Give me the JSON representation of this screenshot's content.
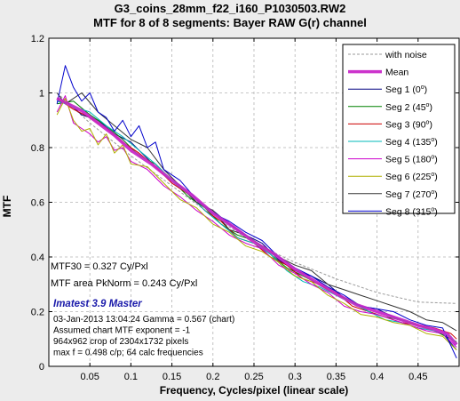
{
  "titles": {
    "line1": "G3_coins_28mm_f22_i160_P1030503.RW2",
    "line2": "MTF for 8 of 8 segments:  Bayer RAW G(r) channel"
  },
  "chart_data": {
    "type": "line",
    "xlabel": "Frequency, Cycles/pixel (linear scale)",
    "ylabel": "MTF",
    "xlim": [
      0,
      0.5
    ],
    "ylim": [
      0,
      1.2
    ],
    "xticks": [
      0.05,
      0.1,
      0.15,
      0.2,
      0.25,
      0.3,
      0.35,
      0.4,
      0.45
    ],
    "xtick_labels": [
      "0.05",
      "0.1",
      "0.15",
      "0.2",
      "0.25",
      "0.3",
      "0.35",
      "0.4",
      "0.45"
    ],
    "yticks": [
      0,
      0.2,
      0.4,
      0.6,
      0.8,
      1,
      1.2
    ],
    "ytick_labels": [
      "0",
      "0.2",
      "0.4",
      "0.6",
      "0.8",
      "1",
      "1.2"
    ],
    "grid": true,
    "legend_position": "top-right",
    "series": [
      {
        "name": "with noise",
        "style": "dashed",
        "color": "#9a9a9a",
        "width": 1,
        "points": [
          [
            0.01,
            1.0
          ],
          [
            0.05,
            0.89
          ],
          [
            0.1,
            0.77
          ],
          [
            0.15,
            0.66
          ],
          [
            0.2,
            0.55
          ],
          [
            0.25,
            0.45
          ],
          [
            0.3,
            0.38
          ],
          [
            0.35,
            0.32
          ],
          [
            0.4,
            0.27
          ],
          [
            0.45,
            0.235
          ],
          [
            0.497,
            0.23
          ]
        ]
      },
      {
        "name": "Mean",
        "style": "solid",
        "color": "#cc33cc",
        "width": 3.5,
        "points": [
          [
            0.01,
            0.98
          ],
          [
            0.02,
            0.965
          ],
          [
            0.04,
            0.935
          ],
          [
            0.06,
            0.89
          ],
          [
            0.08,
            0.845
          ],
          [
            0.1,
            0.79
          ],
          [
            0.125,
            0.74
          ],
          [
            0.15,
            0.68
          ],
          [
            0.175,
            0.625
          ],
          [
            0.2,
            0.56
          ],
          [
            0.225,
            0.51
          ],
          [
            0.25,
            0.455
          ],
          [
            0.275,
            0.41
          ],
          [
            0.3,
            0.355
          ],
          [
            0.325,
            0.31
          ],
          [
            0.35,
            0.265
          ],
          [
            0.375,
            0.225
          ],
          [
            0.4,
            0.2
          ],
          [
            0.425,
            0.175
          ],
          [
            0.45,
            0.15
          ],
          [
            0.47,
            0.135
          ],
          [
            0.485,
            0.12
          ],
          [
            0.497,
            0.08
          ]
        ]
      },
      {
        "name": "Seg 1",
        "sup": "0",
        "style": "solid",
        "color": "#000080",
        "width": 1,
        "points": [
          [
            0.01,
            0.97
          ],
          [
            0.025,
            0.96
          ],
          [
            0.04,
            0.92
          ],
          [
            0.06,
            0.9
          ],
          [
            0.08,
            0.85
          ],
          [
            0.1,
            0.82
          ],
          [
            0.12,
            0.76
          ],
          [
            0.14,
            0.7
          ],
          [
            0.16,
            0.66
          ],
          [
            0.18,
            0.6
          ],
          [
            0.2,
            0.57
          ],
          [
            0.22,
            0.52
          ],
          [
            0.24,
            0.48
          ],
          [
            0.26,
            0.45
          ],
          [
            0.28,
            0.39
          ],
          [
            0.3,
            0.35
          ],
          [
            0.32,
            0.33
          ],
          [
            0.34,
            0.3
          ],
          [
            0.36,
            0.25
          ],
          [
            0.38,
            0.22
          ],
          [
            0.4,
            0.21
          ],
          [
            0.42,
            0.18
          ],
          [
            0.44,
            0.16
          ],
          [
            0.46,
            0.14
          ],
          [
            0.48,
            0.12
          ],
          [
            0.497,
            0.06
          ]
        ]
      },
      {
        "name": "Seg 2",
        "sup": "45",
        "style": "solid",
        "color": "#008000",
        "width": 1,
        "points": [
          [
            0.01,
            0.96
          ],
          [
            0.03,
            0.97
          ],
          [
            0.05,
            0.92
          ],
          [
            0.07,
            0.88
          ],
          [
            0.09,
            0.83
          ],
          [
            0.11,
            0.77
          ],
          [
            0.13,
            0.74
          ],
          [
            0.15,
            0.68
          ],
          [
            0.17,
            0.62
          ],
          [
            0.19,
            0.58
          ],
          [
            0.21,
            0.52
          ],
          [
            0.23,
            0.48
          ],
          [
            0.25,
            0.46
          ],
          [
            0.27,
            0.41
          ],
          [
            0.29,
            0.36
          ],
          [
            0.31,
            0.33
          ],
          [
            0.33,
            0.3
          ],
          [
            0.35,
            0.26
          ],
          [
            0.37,
            0.24
          ],
          [
            0.39,
            0.2
          ],
          [
            0.41,
            0.18
          ],
          [
            0.43,
            0.17
          ],
          [
            0.45,
            0.15
          ],
          [
            0.47,
            0.13
          ],
          [
            0.49,
            0.1
          ],
          [
            0.497,
            0.09
          ]
        ]
      },
      {
        "name": "Seg 3",
        "sup": "90",
        "style": "solid",
        "color": "#cc0000",
        "width": 1,
        "points": [
          [
            0.01,
            0.98
          ],
          [
            0.03,
            0.94
          ],
          [
            0.05,
            0.91
          ],
          [
            0.07,
            0.87
          ],
          [
            0.09,
            0.82
          ],
          [
            0.11,
            0.78
          ],
          [
            0.13,
            0.73
          ],
          [
            0.15,
            0.67
          ],
          [
            0.17,
            0.63
          ],
          [
            0.19,
            0.57
          ],
          [
            0.21,
            0.53
          ],
          [
            0.23,
            0.47
          ],
          [
            0.25,
            0.45
          ],
          [
            0.27,
            0.4
          ],
          [
            0.29,
            0.37
          ],
          [
            0.31,
            0.32
          ],
          [
            0.33,
            0.3
          ],
          [
            0.35,
            0.27
          ],
          [
            0.37,
            0.22
          ],
          [
            0.39,
            0.2
          ],
          [
            0.41,
            0.18
          ],
          [
            0.43,
            0.16
          ],
          [
            0.45,
            0.15
          ],
          [
            0.47,
            0.14
          ],
          [
            0.49,
            0.12
          ],
          [
            0.497,
            0.1
          ]
        ]
      },
      {
        "name": "Seg 4",
        "sup": "135",
        "style": "solid",
        "color": "#00b8b8",
        "width": 1,
        "points": [
          [
            0.01,
            0.97
          ],
          [
            0.03,
            0.95
          ],
          [
            0.05,
            0.93
          ],
          [
            0.07,
            0.88
          ],
          [
            0.09,
            0.84
          ],
          [
            0.11,
            0.79
          ],
          [
            0.13,
            0.74
          ],
          [
            0.15,
            0.68
          ],
          [
            0.17,
            0.63
          ],
          [
            0.19,
            0.57
          ],
          [
            0.21,
            0.52
          ],
          [
            0.23,
            0.47
          ],
          [
            0.25,
            0.45
          ],
          [
            0.27,
            0.41
          ],
          [
            0.29,
            0.35
          ],
          [
            0.31,
            0.31
          ],
          [
            0.33,
            0.29
          ],
          [
            0.35,
            0.26
          ],
          [
            0.37,
            0.23
          ],
          [
            0.39,
            0.2
          ],
          [
            0.41,
            0.17
          ],
          [
            0.43,
            0.16
          ],
          [
            0.45,
            0.14
          ],
          [
            0.47,
            0.13
          ],
          [
            0.49,
            0.11
          ],
          [
            0.497,
            0.08
          ]
        ]
      },
      {
        "name": "Seg 5",
        "sup": "180",
        "style": "solid",
        "color": "#cc00cc",
        "width": 1,
        "points": [
          [
            0.01,
            0.93
          ],
          [
            0.02,
            0.99
          ],
          [
            0.03,
            0.89
          ],
          [
            0.04,
            0.87
          ],
          [
            0.05,
            0.85
          ],
          [
            0.06,
            0.82
          ],
          [
            0.07,
            0.84
          ],
          [
            0.08,
            0.79
          ],
          [
            0.09,
            0.8
          ],
          [
            0.1,
            0.75
          ],
          [
            0.12,
            0.72
          ],
          [
            0.14,
            0.66
          ],
          [
            0.16,
            0.62
          ],
          [
            0.18,
            0.57
          ],
          [
            0.2,
            0.53
          ],
          [
            0.22,
            0.48
          ],
          [
            0.24,
            0.45
          ],
          [
            0.26,
            0.43
          ],
          [
            0.28,
            0.37
          ],
          [
            0.3,
            0.34
          ],
          [
            0.32,
            0.3
          ],
          [
            0.34,
            0.27
          ],
          [
            0.36,
            0.22
          ],
          [
            0.38,
            0.2
          ],
          [
            0.4,
            0.19
          ],
          [
            0.42,
            0.17
          ],
          [
            0.44,
            0.15
          ],
          [
            0.46,
            0.13
          ],
          [
            0.48,
            0.12
          ],
          [
            0.497,
            0.07
          ]
        ]
      },
      {
        "name": "Seg 6",
        "sup": "225",
        "style": "solid",
        "color": "#b0b000",
        "width": 1,
        "points": [
          [
            0.01,
            0.92
          ],
          [
            0.02,
            0.98
          ],
          [
            0.03,
            0.9
          ],
          [
            0.04,
            0.86
          ],
          [
            0.05,
            0.87
          ],
          [
            0.06,
            0.81
          ],
          [
            0.07,
            0.85
          ],
          [
            0.08,
            0.78
          ],
          [
            0.09,
            0.81
          ],
          [
            0.1,
            0.74
          ],
          [
            0.12,
            0.73
          ],
          [
            0.14,
            0.67
          ],
          [
            0.16,
            0.61
          ],
          [
            0.18,
            0.58
          ],
          [
            0.2,
            0.52
          ],
          [
            0.22,
            0.49
          ],
          [
            0.24,
            0.44
          ],
          [
            0.26,
            0.42
          ],
          [
            0.28,
            0.38
          ],
          [
            0.3,
            0.33
          ],
          [
            0.32,
            0.31
          ],
          [
            0.34,
            0.26
          ],
          [
            0.36,
            0.23
          ],
          [
            0.38,
            0.19
          ],
          [
            0.4,
            0.18
          ],
          [
            0.42,
            0.16
          ],
          [
            0.44,
            0.15
          ],
          [
            0.46,
            0.12
          ],
          [
            0.48,
            0.11
          ],
          [
            0.497,
            0.06
          ]
        ]
      },
      {
        "name": "Seg 7",
        "sup": "270",
        "style": "solid",
        "color": "#333333",
        "width": 1,
        "points": [
          [
            0.01,
            1.0
          ],
          [
            0.02,
            0.96
          ],
          [
            0.04,
            1.0
          ],
          [
            0.06,
            0.93
          ],
          [
            0.08,
            0.88
          ],
          [
            0.1,
            0.83
          ],
          [
            0.12,
            0.8
          ],
          [
            0.14,
            0.72
          ],
          [
            0.16,
            0.66
          ],
          [
            0.18,
            0.6
          ],
          [
            0.2,
            0.57
          ],
          [
            0.22,
            0.5
          ],
          [
            0.24,
            0.48
          ],
          [
            0.26,
            0.44
          ],
          [
            0.28,
            0.4
          ],
          [
            0.3,
            0.37
          ],
          [
            0.32,
            0.35
          ],
          [
            0.34,
            0.3
          ],
          [
            0.36,
            0.28
          ],
          [
            0.38,
            0.26
          ],
          [
            0.4,
            0.24
          ],
          [
            0.42,
            0.22
          ],
          [
            0.44,
            0.2
          ],
          [
            0.46,
            0.17
          ],
          [
            0.48,
            0.16
          ],
          [
            0.497,
            0.13
          ]
        ]
      },
      {
        "name": "Seg 8",
        "sup": "315",
        "style": "solid",
        "color": "#0000cc",
        "width": 1,
        "points": [
          [
            0.01,
            0.96
          ],
          [
            0.02,
            1.1
          ],
          [
            0.03,
            1.02
          ],
          [
            0.04,
            0.97
          ],
          [
            0.05,
            1.0
          ],
          [
            0.06,
            0.93
          ],
          [
            0.07,
            0.91
          ],
          [
            0.08,
            0.86
          ],
          [
            0.09,
            0.9
          ],
          [
            0.1,
            0.84
          ],
          [
            0.11,
            0.88
          ],
          [
            0.12,
            0.8
          ],
          [
            0.13,
            0.82
          ],
          [
            0.14,
            0.72
          ],
          [
            0.16,
            0.68
          ],
          [
            0.18,
            0.61
          ],
          [
            0.2,
            0.56
          ],
          [
            0.22,
            0.53
          ],
          [
            0.24,
            0.49
          ],
          [
            0.26,
            0.46
          ],
          [
            0.28,
            0.4
          ],
          [
            0.3,
            0.36
          ],
          [
            0.32,
            0.33
          ],
          [
            0.34,
            0.29
          ],
          [
            0.36,
            0.26
          ],
          [
            0.38,
            0.22
          ],
          [
            0.4,
            0.21
          ],
          [
            0.42,
            0.2
          ],
          [
            0.44,
            0.17
          ],
          [
            0.46,
            0.15
          ],
          [
            0.48,
            0.14
          ],
          [
            0.497,
            0.03
          ]
        ]
      }
    ]
  },
  "annotations": {
    "mtf30": "MTF30 = 0.327 Cy/Pxl",
    "mtf_area": "MTF area PkNorm = 0.243 Cy/Pxl",
    "brand": "Imatest 3.9 Master",
    "info": [
      "03-Jan-2013 13:04:24    Gamma = 0.567 (chart)",
      "Assumed chart MTF exponent = -1",
      "964x962 crop of 2304x1732 pixels",
      "max f = 0.498 c/p;  64 calc frequencies"
    ]
  },
  "colors": {
    "brand": "#1a1aaa",
    "grid": "#b4b4b4",
    "plot_bg": "#ffffff",
    "page_bg": "#ececec"
  }
}
